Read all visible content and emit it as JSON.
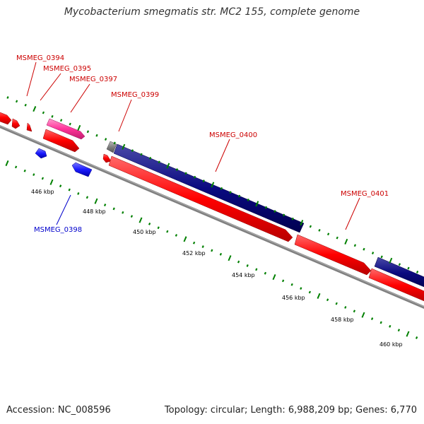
{
  "title": "Mycobacterium smegmatis str. MC2 155, complete genome",
  "footer": {
    "accession": "Accession: NC_008596",
    "summary": "Topology: circular; Length: 6,988,209 bp; Genes: 6,770"
  },
  "colors": {
    "forward_gene": "#ff0000",
    "reverse_gene": "#0000ff",
    "highlight_gene": "#ff3399",
    "large_forward_gene": "#000080",
    "small_feature": "#808080",
    "backbone": "#808080",
    "ticks": "#008000",
    "label_forward": "#cc0000",
    "label_reverse": "#0000cc"
  },
  "scale": {
    "unit": "kbp",
    "labels": [
      "446 kbp",
      "448 kbp",
      "450 kbp",
      "452 kbp",
      "454 kbp",
      "456 kbp",
      "458 kbp",
      "460 kbp"
    ]
  },
  "gene_labels": [
    {
      "name": "MSMEG_0394",
      "strand": "forward"
    },
    {
      "name": "MSMEG_0395",
      "strand": "forward"
    },
    {
      "name": "MSMEG_0397",
      "strand": "forward"
    },
    {
      "name": "MSMEG_0399",
      "strand": "forward"
    },
    {
      "name": "MSMEG_0400",
      "strand": "forward"
    },
    {
      "name": "MSMEG_0401",
      "strand": "forward"
    },
    {
      "name": "MSMEG_0398",
      "strand": "reverse"
    }
  ]
}
